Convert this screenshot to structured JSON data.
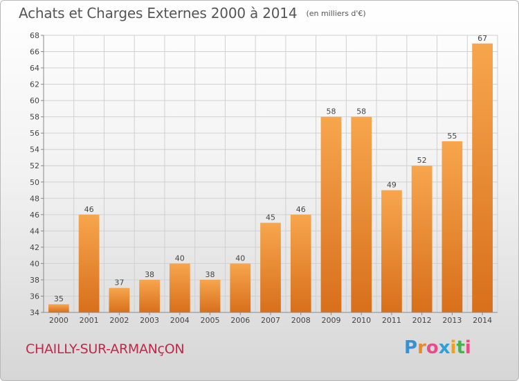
{
  "chart_data": {
    "type": "bar",
    "title": "Achats et Charges Externes 2000 à 2014",
    "unit_note": "(en milliers d'€)",
    "xlabel": "",
    "ylabel": "",
    "categories": [
      "2000",
      "2001",
      "2002",
      "2003",
      "2004",
      "2005",
      "2006",
      "2007",
      "2008",
      "2009",
      "2010",
      "2011",
      "2012",
      "2013",
      "2014"
    ],
    "values": [
      35,
      46,
      37,
      38,
      40,
      38,
      40,
      45,
      46,
      58,
      58,
      49,
      52,
      55,
      67
    ],
    "ylim": [
      34,
      68
    ],
    "ytick_step": 2,
    "grid": true,
    "bar_color_light": "#f7a64e",
    "bar_color_dark": "#d86f1b"
  },
  "footer": {
    "commune": "CHAILLY-SUR-ARMANçON",
    "brand_letters": [
      "P",
      "r",
      "o",
      "x",
      "i",
      "t",
      "i"
    ],
    "brand_colors": [
      "#3a8fd0",
      "#e8892a",
      "#e94b8a",
      "#2f9fd8",
      "#f0a020",
      "#4caf50",
      "#e94b8a"
    ]
  }
}
